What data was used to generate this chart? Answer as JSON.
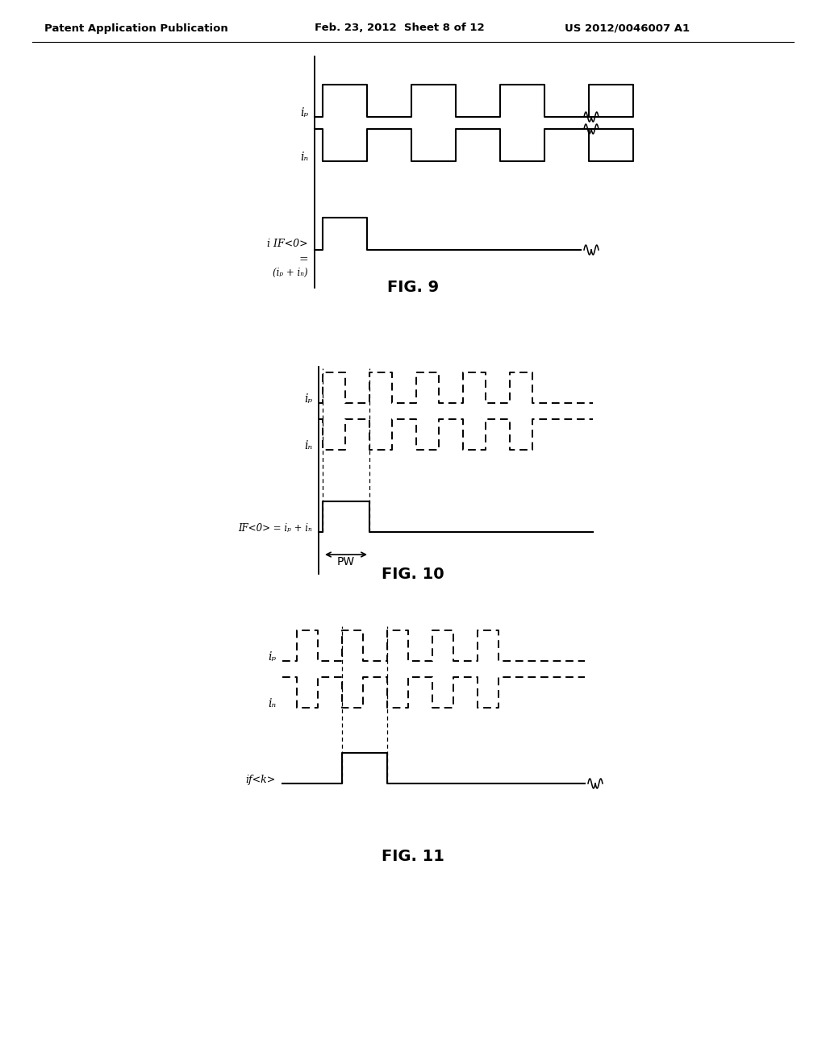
{
  "header_left": "Patent Application Publication",
  "header_mid": "Feb. 23, 2012  Sheet 8 of 12",
  "header_right": "US 2012/0046007 A1",
  "background_color": "#ffffff",
  "fig9": {
    "label": "FIG. 9",
    "ip_label": "iₚ",
    "in_label": "iₙ",
    "if_label": "i IF<0>",
    "eq_label": "=",
    "sum_label": "(iₚ + iₙ)"
  },
  "fig10": {
    "label": "FIG. 10",
    "ip_label": "iₚ",
    "in_label": "iₙ",
    "if_label": "IF<0> = iₚ + iₙ",
    "pw_label": "PW"
  },
  "fig11": {
    "label": "FIG. 11",
    "ip_label": "iₚ",
    "in_label": "iₙ",
    "if_label": "if<k>"
  }
}
